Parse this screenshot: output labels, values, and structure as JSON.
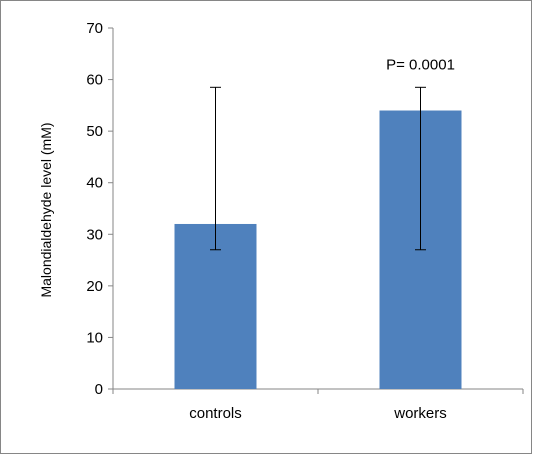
{
  "chart_data": {
    "type": "bar",
    "title": "",
    "xlabel": "",
    "ylabel": "Malondialdehyde level (mM)",
    "ylim": [
      0,
      70
    ],
    "yticks": [
      0,
      10,
      20,
      30,
      40,
      50,
      60,
      70
    ],
    "grid": false,
    "legend": "none",
    "categories": [
      "controls",
      "workers"
    ],
    "values": [
      32,
      54
    ],
    "error_bars": [
      {
        "low": 27,
        "high": 58.5
      },
      {
        "low": 27,
        "high": 58.5
      }
    ],
    "annotations": [
      {
        "category": "workers",
        "text": "P= 0.0001"
      }
    ],
    "colors": {
      "bar": "#4F81BD",
      "axis": "#868686",
      "frame": "#868686",
      "error_bar": "#000000",
      "text": "#000000"
    }
  }
}
